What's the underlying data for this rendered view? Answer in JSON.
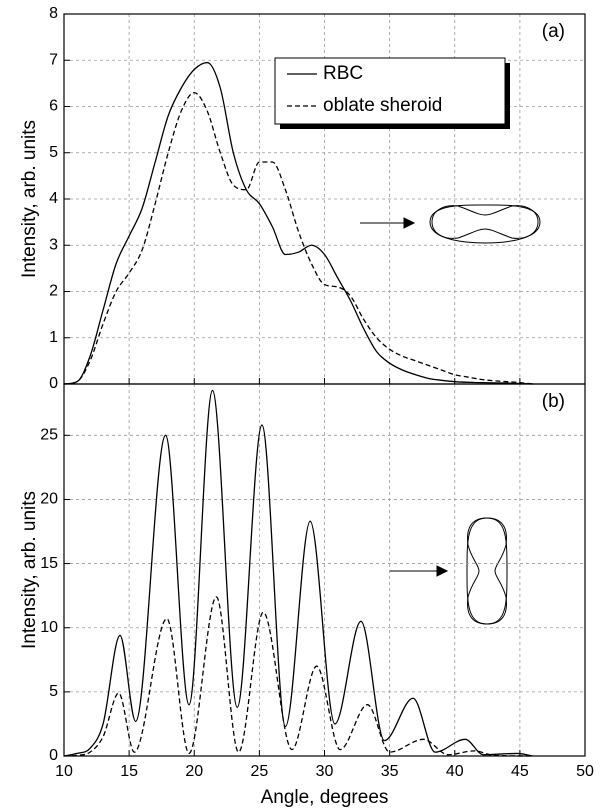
{
  "chart_data": [
    {
      "type": "line",
      "ylabel": "Intensity, arb. units",
      "annotation": "(a)",
      "xlim": [
        10,
        50
      ],
      "ylim": [
        0,
        8
      ],
      "yticks": [
        0,
        1,
        2,
        3,
        4,
        5,
        6,
        7,
        8
      ],
      "grid": true,
      "legend": "upper right",
      "series": [
        {
          "name": "RBC",
          "color": "#000000",
          "dash": "solid",
          "x": [
            10,
            11,
            12,
            13,
            14,
            15,
            16,
            17,
            18,
            19,
            20,
            21,
            22,
            23,
            24,
            25,
            26,
            27,
            28,
            29,
            30,
            31,
            32,
            33,
            34,
            35,
            36,
            37,
            38,
            39,
            40,
            42,
            44,
            46
          ],
          "values": [
            0,
            0.05,
            0.6,
            1.6,
            2.6,
            3.2,
            3.8,
            4.8,
            5.8,
            6.4,
            6.8,
            6.95,
            6.4,
            5.0,
            4.2,
            3.9,
            3.4,
            2.8,
            2.85,
            3.0,
            2.8,
            2.3,
            1.8,
            1.2,
            0.7,
            0.45,
            0.3,
            0.2,
            0.12,
            0.08,
            0.05,
            0.03,
            0.02,
            0
          ]
        },
        {
          "name": "oblate sheroid",
          "color": "#000000",
          "dash": "dashed",
          "x": [
            10,
            11,
            12,
            13,
            14,
            15,
            16,
            17,
            18,
            19,
            20,
            21,
            22,
            23,
            24,
            25,
            26,
            27,
            28,
            29,
            30,
            31,
            32,
            33,
            34,
            35,
            36,
            37,
            38,
            39,
            40,
            41,
            42,
            43,
            44,
            45,
            46
          ],
          "values": [
            0,
            0.05,
            0.5,
            1.3,
            2.0,
            2.4,
            2.9,
            3.9,
            5.0,
            5.9,
            6.3,
            5.9,
            5.0,
            4.3,
            4.2,
            4.8,
            4.8,
            4.2,
            3.3,
            2.6,
            2.15,
            2.1,
            1.9,
            1.4,
            1.0,
            0.75,
            0.6,
            0.5,
            0.4,
            0.3,
            0.2,
            0.15,
            0.1,
            0.07,
            0.05,
            0.03,
            0
          ]
        }
      ]
    },
    {
      "type": "line",
      "xlabel": "Angle, degrees",
      "ylabel": "Intensity, arb. units",
      "annotation": "(b)",
      "xlim": [
        10,
        50
      ],
      "xticks": [
        10,
        15,
        20,
        25,
        30,
        35,
        40,
        45,
        50
      ],
      "ylim": [
        0,
        29
      ],
      "yticks": [
        0,
        5,
        10,
        15,
        20,
        25
      ],
      "grid": true,
      "series": [
        {
          "name": "RBC",
          "color": "#000000",
          "dash": "solid",
          "x": [
            10,
            11,
            12,
            13,
            14.3,
            15.5,
            17.8,
            19.6,
            21.4,
            23.3,
            25.2,
            27,
            28.9,
            30.8,
            32.8,
            34.6,
            36.8,
            38.5,
            40.8,
            42.2,
            44.8,
            46
          ],
          "values": [
            0,
            0.2,
            0.6,
            2.5,
            9.4,
            2.7,
            25,
            4,
            28.5,
            3.8,
            25.8,
            2.3,
            18.3,
            2.5,
            10.5,
            1.2,
            4.5,
            0.3,
            1.3,
            0.1,
            0.2,
            0
          ]
        },
        {
          "name": "oblate sheroid",
          "color": "#000000",
          "dash": "dashed",
          "x": [
            10,
            11,
            12,
            13,
            14.2,
            15.4,
            17.9,
            19.6,
            21.7,
            23.4,
            25.3,
            27.5,
            29.4,
            31.2,
            33.3,
            35,
            37.6,
            39.5,
            41.5,
            43,
            46
          ],
          "values": [
            0,
            0.05,
            0.3,
            1.5,
            4.9,
            0.3,
            10.7,
            0.2,
            12.4,
            0.3,
            11.2,
            0.5,
            7.0,
            0.5,
            4.0,
            0.3,
            1.3,
            0.1,
            0.4,
            0.05,
            0
          ]
        }
      ]
    }
  ]
}
